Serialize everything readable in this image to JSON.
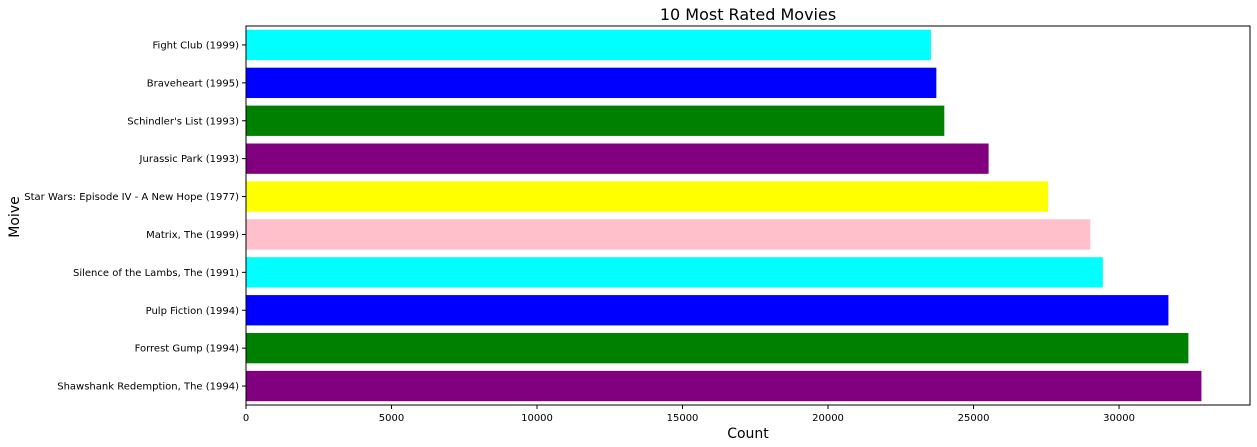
{
  "chart_data": {
    "type": "bar",
    "orientation": "horizontal",
    "title": "10 Most Rated Movies",
    "xlabel": "Count",
    "ylabel": "Moive",
    "xlim": [
      0,
      34500
    ],
    "xticks": [
      0,
      5000,
      10000,
      15000,
      20000,
      25000,
      30000
    ],
    "grid": false,
    "categories": [
      "Shawshank Redemption, The (1994)",
      "Forrest Gump (1994)",
      "Pulp Fiction (1994)",
      "Silence of the Lambs, The (1991)",
      "Matrix, The (1999)",
      "Star Wars: Episode IV - A New Hope (1977)",
      "Jurassic Park (1993)",
      "Schindler's List (1993)",
      "Braveheart (1995)",
      "Fight Club (1999)"
    ],
    "values": [
      32831,
      32383,
      31697,
      29444,
      29014,
      27560,
      25518,
      23996,
      23722,
      23536
    ],
    "colors": [
      "#800080",
      "#008000",
      "#0000ff",
      "#00ffff",
      "#ffc0cb",
      "#ffff00",
      "#800080",
      "#008000",
      "#0000ff",
      "#00ffff"
    ]
  }
}
